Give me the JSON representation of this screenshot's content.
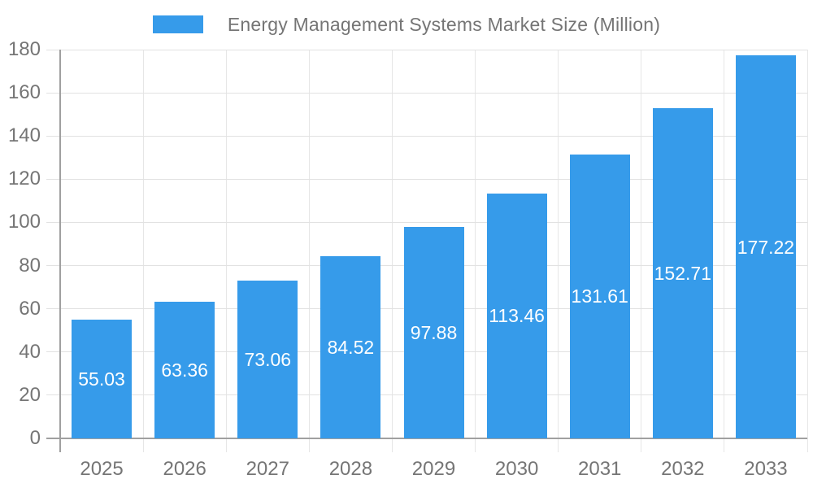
{
  "chart_data": {
    "type": "bar",
    "legend_label": "Energy Management Systems Market Size (Million)",
    "legend_position": "top",
    "categories": [
      "2025",
      "2026",
      "2027",
      "2028",
      "2029",
      "2030",
      "2031",
      "2032",
      "2033"
    ],
    "series": [
      {
        "name": "Energy Management Systems Market Size (Million)",
        "values": [
          55.03,
          63.36,
          73.06,
          84.52,
          97.88,
          113.46,
          131.61,
          152.71,
          177.22
        ]
      }
    ],
    "value_labels": [
      "55.03",
      "63.36",
      "73.06",
      "84.52",
      "97.88",
      "113.46",
      "131.61",
      "152.71",
      "177.22"
    ],
    "y_tick_labels": [
      "0",
      "20",
      "40",
      "60",
      "80",
      "100",
      "120",
      "140",
      "160",
      "180"
    ],
    "ylim": [
      0,
      180
    ],
    "ytick_step": 20,
    "grid": true,
    "xlabel": "",
    "ylabel": "",
    "colors": {
      "bar": "#369BEA",
      "grid_h": "#e2e2e2",
      "grid_v": "#e6e6e6",
      "axis": "#a0a0a0",
      "tick_text": "#757575",
      "value_text": "#ffffff",
      "background": "#ffffff"
    }
  }
}
